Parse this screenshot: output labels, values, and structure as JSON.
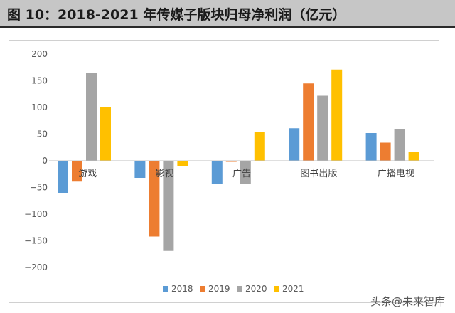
{
  "header": {
    "title": "图 10：2018-2021 年传媒子版块归母净利润（亿元）"
  },
  "watermark": "头条@未来智库",
  "chart_data": {
    "type": "bar",
    "categories": [
      "游戏",
      "影视",
      "广告",
      "图书出版",
      "广播电视"
    ],
    "series": [
      {
        "name": "2018",
        "color": "#5b9bd5",
        "values": [
          -60,
          -32,
          -43,
          61,
          52
        ]
      },
      {
        "name": "2019",
        "color": "#ed7d31",
        "values": [
          -39,
          -142,
          -2,
          145,
          34
        ]
      },
      {
        "name": "2020",
        "color": "#a5a5a5",
        "values": [
          165,
          -169,
          -43,
          122,
          60
        ]
      },
      {
        "name": "2021",
        "color": "#ffc000",
        "values": [
          101,
          -10,
          54,
          171,
          17
        ]
      }
    ],
    "yticks": [
      200,
      150,
      100,
      50,
      0,
      -50,
      -100,
      -150,
      -200
    ],
    "ytick_labels": [
      "200",
      "150",
      "100",
      "50",
      "0",
      "−50",
      "−100",
      "−150",
      "−200"
    ],
    "ylim": [
      -200,
      200
    ],
    "legend_position": "bottom",
    "grid": false
  }
}
